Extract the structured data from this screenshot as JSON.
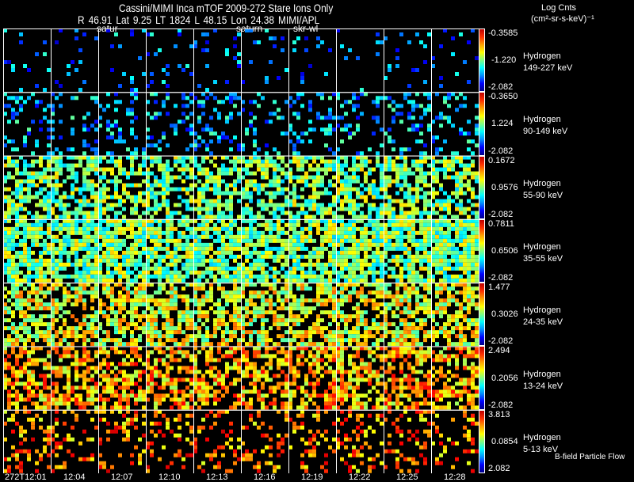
{
  "header": {
    "title": "Cassini/MIMI Inca mTOF  2009-272   Stare    Ions Only",
    "subtitle": "R        46.91 Lat 9.25 LT 1824 L         48.15 Lon        24.38  MIMI/APL",
    "annotations": [
      "satur",
      "saturn",
      "skr-wl"
    ]
  },
  "legend": {
    "title": "Log Cnts",
    "units": "(cm²-sr-s-keV)⁻¹"
  },
  "footer": {
    "note": "B-field Particle Flow"
  },
  "chart_data": {
    "type": "heatmap",
    "title": "Cassini/MIMI Inca mTOF 2009-272 Stare Ions Only",
    "time_labels": [
      "272T12:01",
      "12:04",
      "12:07",
      "12:10",
      "12:13",
      "12:16",
      "12:19",
      "12:22",
      "12:25",
      "12:28"
    ],
    "rows": [
      {
        "species": "Hydrogen",
        "energy": "149-227 keV",
        "cmax": "-0.3585",
        "cmid": "-1.220",
        "cmin": "-2.082",
        "fill_fraction": 0.08,
        "level": 0.25
      },
      {
        "species": "Hydrogen",
        "energy": "90-149 keV",
        "cmax": "-0.3650",
        "cmid": "1.224",
        "cmin": "-2.082",
        "fill_fraction": 0.25,
        "level": 0.3
      },
      {
        "species": "Hydrogen",
        "energy": "55-90 keV",
        "cmax": "0.1672",
        "cmid": "0.9576",
        "cmin": "-2.082",
        "fill_fraction": 0.65,
        "level": 0.5
      },
      {
        "species": "Hydrogen",
        "energy": "35-55 keV",
        "cmax": "0.7811",
        "cmid": "0.6506",
        "cmin": "-2.082",
        "fill_fraction": 0.8,
        "level": 0.5
      },
      {
        "species": "Hydrogen",
        "energy": "24-35 keV",
        "cmax": "1.477",
        "cmid": "0.3026",
        "cmin": "-2.082",
        "fill_fraction": 0.65,
        "level": 0.6
      },
      {
        "species": "Hydrogen",
        "energy": "13-24 keV",
        "cmax": "2.494",
        "cmid": "0.2056",
        "cmin": "-2.082",
        "fill_fraction": 0.6,
        "level": 0.7
      },
      {
        "species": "Hydrogen",
        "energy": "5-13 keV",
        "cmax": "3.813",
        "cmid": "0.0854",
        "cmin": "2.082",
        "fill_fraction": 0.25,
        "level": 0.75
      }
    ]
  }
}
